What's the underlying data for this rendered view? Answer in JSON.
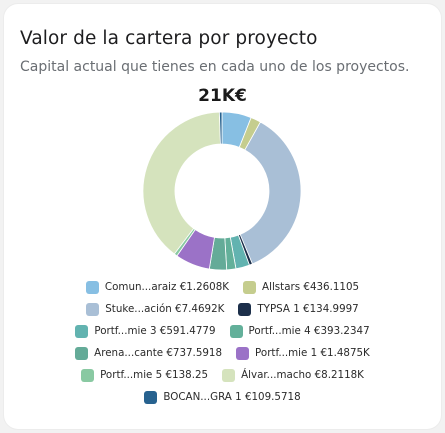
{
  "card": {
    "title": "Valor de la cartera por proyecto",
    "subtitle": "Capital actual que tienes en cada uno de los proyectos."
  },
  "chart_data": {
    "type": "donut",
    "center_label": "21K€",
    "legend_position": "bottom",
    "series": [
      {
        "name": "Comun...araiz",
        "label": "Comun...araiz €1.2608K",
        "value": 1260.8,
        "color": "#87bfe3"
      },
      {
        "name": "Allstars",
        "label": "Allstars €436.1105",
        "value": 436.1105,
        "color": "#c5cd8e"
      },
      {
        "name": "Stuke...ación",
        "label": "Stuke...ación €7.4692K",
        "value": 7469.2,
        "color": "#a9bfd6"
      },
      {
        "name": "TYPSA 1",
        "label": "TYPSA 1 €134.9997",
        "value": 134.9997,
        "color": "#1c2f4a"
      },
      {
        "name": "Portf...mie 3",
        "label": "Portf...mie 3 €591.4779",
        "value": 591.4779,
        "color": "#62b3b0"
      },
      {
        "name": "Portf...mie 4",
        "label": "Portf...mie 4 €393.2347",
        "value": 393.2347,
        "color": "#63b09a"
      },
      {
        "name": "Arena...cante",
        "label": "Arena...cante €737.5918",
        "value": 737.5918,
        "color": "#64ab98"
      },
      {
        "name": "Portf...mie 1",
        "label": "Portf...mie 1 €1.4875K",
        "value": 1487.5,
        "color": "#9b72c7"
      },
      {
        "name": "Portf...mie 5",
        "label": "Portf...mie 5 €138.25",
        "value": 138.25,
        "color": "#89c9a2"
      },
      {
        "name": "Álvar...macho",
        "label": "Álvar...macho €8.2118K",
        "value": 8211.8,
        "color": "#d5e3bd"
      },
      {
        "name": "BOCAN...GRA 1",
        "label": "BOCAN...GRA 1 €109.5718",
        "value": 109.5718,
        "color": "#27628f"
      }
    ],
    "legend_rows": [
      [
        0,
        1
      ],
      [
        2,
        3
      ],
      [
        4,
        5
      ],
      [
        6,
        7
      ],
      [
        8,
        9
      ],
      [
        10
      ]
    ]
  }
}
